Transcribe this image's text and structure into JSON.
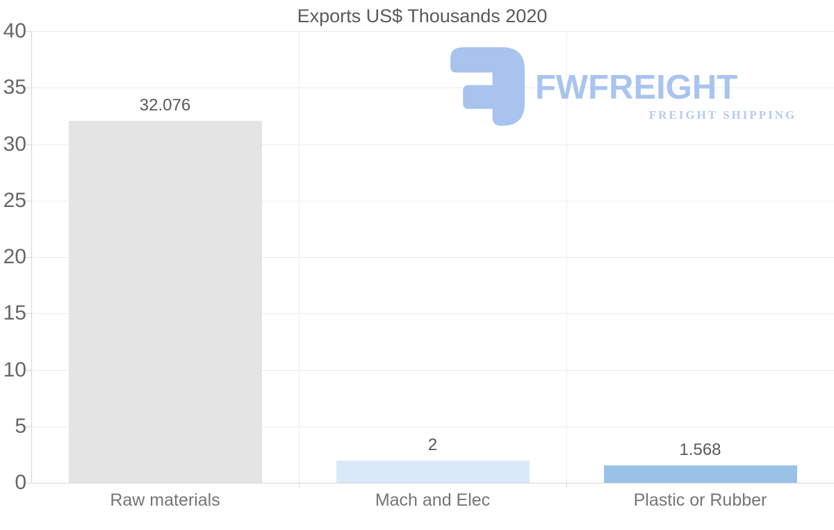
{
  "title": "Exports US$ Thousands 2020",
  "logo": {
    "brand": "FWFREIGHT",
    "tagline": "FREIGHT SHIPPING",
    "mark_color": "#a8c3ee",
    "brand_color": "#a8c4ef",
    "tagline_color": "#b4caf1"
  },
  "chart_data": {
    "type": "bar",
    "title": "Exports US$ Thousands 2020",
    "categories": [
      "Raw materials",
      "Mach and Elec",
      "Plastic or Rubber"
    ],
    "values": [
      32.076,
      2,
      1.568
    ],
    "value_labels": [
      "32.076",
      "2",
      "1.568"
    ],
    "bar_colors": [
      "#e4e4e4",
      "#d9e9f9",
      "#9ac2e8"
    ],
    "xlabel": "",
    "ylabel": "",
    "ylim": [
      0,
      40
    ],
    "yticks": [
      0,
      5,
      10,
      15,
      20,
      25,
      30,
      35,
      40
    ],
    "grid": true,
    "legend": false
  }
}
